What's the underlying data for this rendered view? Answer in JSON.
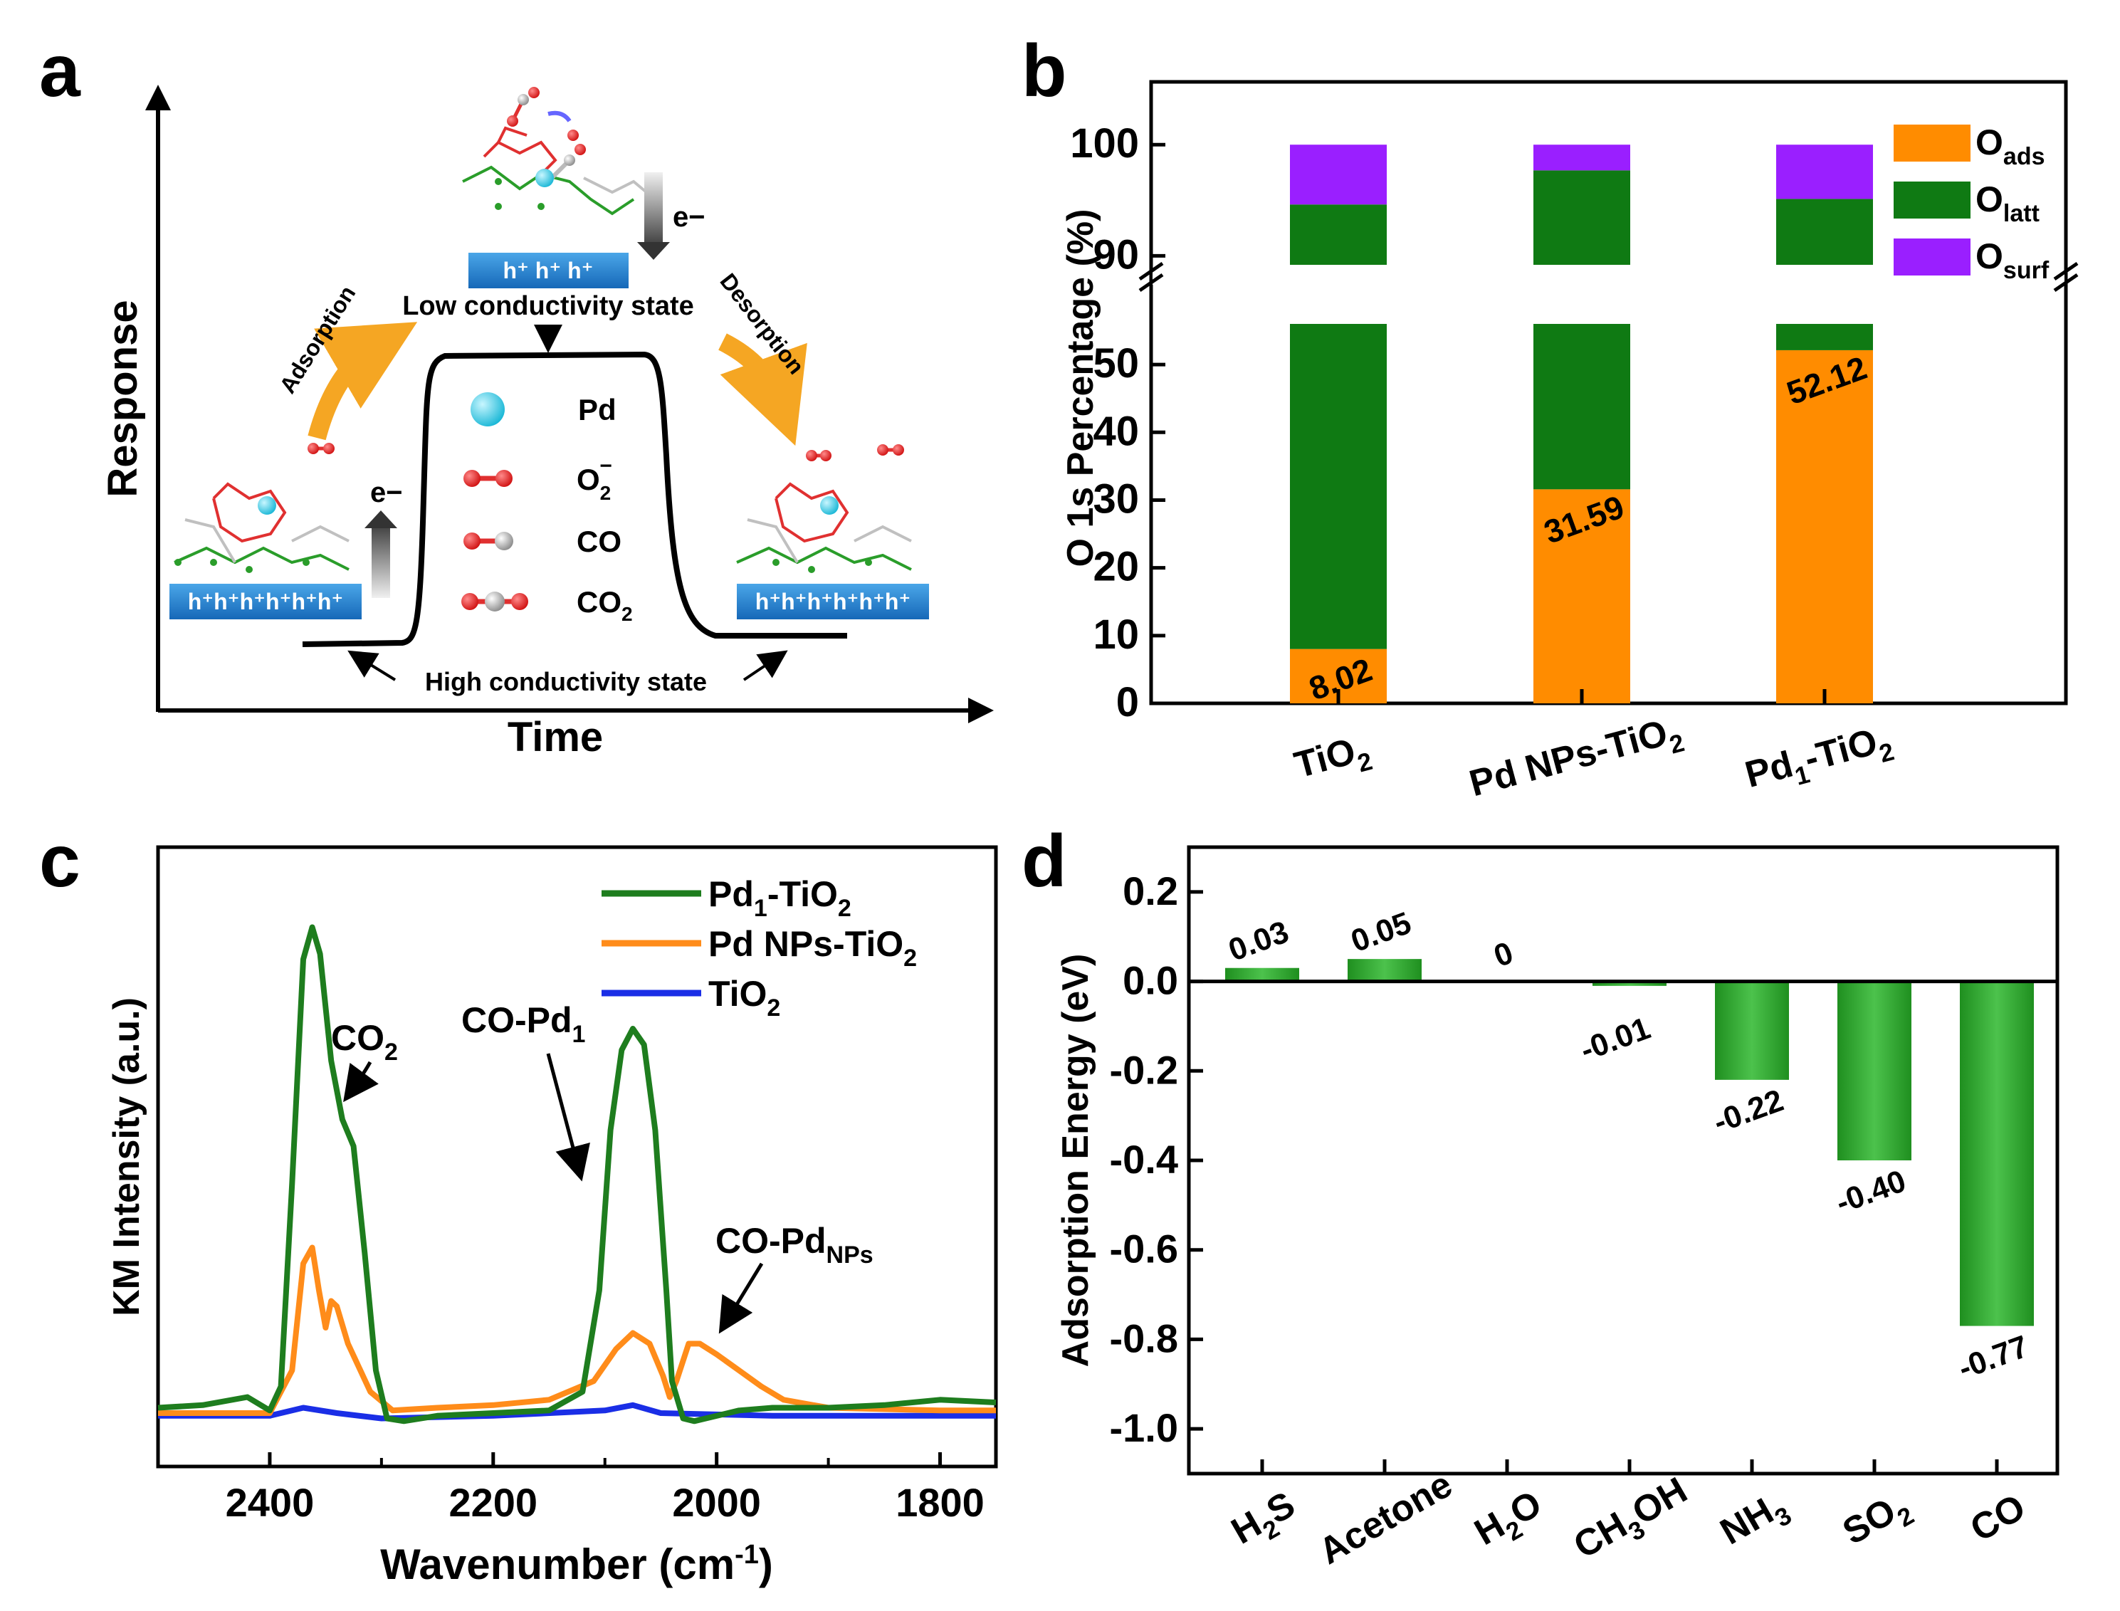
{
  "panels": {
    "a": {
      "label": "a",
      "xlabel": "Time",
      "ylabel": "Response",
      "low_state": "Low conductivity state",
      "high_state": "High conductivity state",
      "adsorption": "Adsorption",
      "desorption": "Desorption",
      "electron_up": "e−",
      "electron_down": "e−",
      "holes_top": "h⁺ h⁺ h⁺",
      "holes_left": "h⁺h⁺h⁺h⁺h⁺h⁺",
      "holes_right": "h⁺h⁺h⁺h⁺h⁺h⁺",
      "legend": [
        {
          "label": "Pd",
          "icon": "pd-atom-icon"
        },
        {
          "label": "O",
          "sub": "2",
          "sup": "−",
          "icon": "o2-molecule-icon"
        },
        {
          "label": "CO",
          "icon": "co-molecule-icon"
        },
        {
          "label": "CO",
          "sub": "2",
          "icon": "co2-molecule-icon"
        }
      ],
      "colors": {
        "box": "#1f7fd1",
        "arrow": "#f5a623",
        "pd": "#33c8e0",
        "o": "#e02020",
        "c": "#9a9a9a"
      }
    },
    "b": {
      "label": "b",
      "ylabel": "O 1s Percentage (%)"
    },
    "c": {
      "label": "c",
      "ylabel": "KM Intensity (a.u.)",
      "annotations": {
        "co2": {
          "main": "CO",
          "sub": "2"
        },
        "co_pd1": {
          "main": "CO-Pd",
          "sub": "1"
        },
        "co_pdnps": {
          "main": "CO-Pd",
          "sub": "NPs"
        }
      }
    },
    "d": {
      "label": "d",
      "ylabel": "Adsorption Energy (eV)"
    }
  },
  "chart_data": [
    {
      "id": "b",
      "type": "bar",
      "stacked": true,
      "broken_axis": {
        "lower": [
          0,
          56
        ],
        "upper": [
          89,
          102
        ]
      },
      "categories": [
        {
          "main": "TiO",
          "sub": "2",
          "tail": ""
        },
        {
          "main": "Pd NPs-TiO",
          "sub": "2",
          "tail": ""
        },
        {
          "main": "Pd",
          "sub": "1",
          "tail": "-TiO",
          "sub2": "2"
        }
      ],
      "series": [
        {
          "name": "O_ads",
          "label": "O",
          "sub": "ads",
          "color": "#ff8c00",
          "values": [
            8.02,
            31.59,
            52.12
          ]
        },
        {
          "name": "O_latt",
          "label": "O",
          "sub": "latt",
          "color": "#0f7a13",
          "values": [
            86.6,
            66.1,
            43.0
          ]
        },
        {
          "name": "O_surf",
          "label": "O",
          "sub": "surf",
          "color": "#9a1fff",
          "values": [
            5.38,
            2.31,
            4.88
          ]
        }
      ],
      "value_labels": [
        "8.02",
        "31.59",
        "52.12"
      ],
      "yticks_lower": [
        0,
        10,
        20,
        30,
        40,
        50
      ],
      "yticks_upper": [
        90,
        100
      ],
      "ytick_labels_lower": [
        "0",
        "10",
        "20",
        "30",
        "40",
        "50"
      ],
      "ytick_labels_upper": [
        "90",
        "100"
      ]
    },
    {
      "id": "c",
      "type": "line",
      "xlabel": "Wavenumber (cm",
      "xlabel_sup": "-1",
      "xlabel_tail": ")",
      "xlim": [
        2500,
        1750
      ],
      "ylim": [
        0,
        1.0
      ],
      "xticks": [
        2400,
        2200,
        2000,
        1800
      ],
      "xtick_labels": [
        "2400",
        "2200",
        "2000",
        "1800"
      ],
      "series": [
        {
          "name": "Pd1-TiO2",
          "label_main": "Pd",
          "label_sub": "1",
          "label_tail": "-TiO",
          "label_sub2": "2",
          "color": "#1e7d1e",
          "points": [
            [
              2500,
              0.03
            ],
            [
              2460,
              0.035
            ],
            [
              2420,
              0.05
            ],
            [
              2400,
              0.025
            ],
            [
              2390,
              0.07
            ],
            [
              2380,
              0.45
            ],
            [
              2370,
              0.87
            ],
            [
              2362,
              0.93
            ],
            [
              2355,
              0.88
            ],
            [
              2345,
              0.68
            ],
            [
              2335,
              0.57
            ],
            [
              2325,
              0.52
            ],
            [
              2315,
              0.32
            ],
            [
              2305,
              0.1
            ],
            [
              2295,
              0.01
            ],
            [
              2280,
              0.005
            ],
            [
              2250,
              0.015
            ],
            [
              2200,
              0.02
            ],
            [
              2150,
              0.025
            ],
            [
              2120,
              0.06
            ],
            [
              2105,
              0.25
            ],
            [
              2095,
              0.55
            ],
            [
              2085,
              0.7
            ],
            [
              2075,
              0.74
            ],
            [
              2065,
              0.71
            ],
            [
              2055,
              0.55
            ],
            [
              2045,
              0.25
            ],
            [
              2040,
              0.08
            ],
            [
              2030,
              0.01
            ],
            [
              2020,
              0.005
            ],
            [
              1980,
              0.025
            ],
            [
              1950,
              0.03
            ],
            [
              1900,
              0.03
            ],
            [
              1850,
              0.035
            ],
            [
              1800,
              0.045
            ],
            [
              1750,
              0.04
            ]
          ]
        },
        {
          "name": "Pd NPs-TiO2",
          "label_main": "Pd NPs-TiO",
          "label_sub": "2",
          "label_tail": "",
          "label_sub2": "",
          "color": "#ff8c1a",
          "points": [
            [
              2500,
              0.02
            ],
            [
              2440,
              0.02
            ],
            [
              2400,
              0.02
            ],
            [
              2380,
              0.1
            ],
            [
              2370,
              0.3
            ],
            [
              2362,
              0.33
            ],
            [
              2356,
              0.25
            ],
            [
              2350,
              0.18
            ],
            [
              2345,
              0.23
            ],
            [
              2340,
              0.22
            ],
            [
              2330,
              0.15
            ],
            [
              2310,
              0.06
            ],
            [
              2290,
              0.025
            ],
            [
              2250,
              0.03
            ],
            [
              2200,
              0.035
            ],
            [
              2150,
              0.045
            ],
            [
              2110,
              0.08
            ],
            [
              2090,
              0.14
            ],
            [
              2075,
              0.17
            ],
            [
              2060,
              0.15
            ],
            [
              2048,
              0.09
            ],
            [
              2042,
              0.05
            ],
            [
              2036,
              0.08
            ],
            [
              2025,
              0.15
            ],
            [
              2015,
              0.15
            ],
            [
              2000,
              0.13
            ],
            [
              1980,
              0.1
            ],
            [
              1960,
              0.07
            ],
            [
              1940,
              0.045
            ],
            [
              1900,
              0.03
            ],
            [
              1800,
              0.025
            ],
            [
              1750,
              0.025
            ]
          ]
        },
        {
          "name": "TiO2",
          "label_main": "TiO",
          "label_sub": "2",
          "label_tail": "",
          "label_sub2": "",
          "color": "#1a2ee6",
          "points": [
            [
              2500,
              0.015
            ],
            [
              2400,
              0.015
            ],
            [
              2370,
              0.03
            ],
            [
              2340,
              0.02
            ],
            [
              2300,
              0.01
            ],
            [
              2200,
              0.015
            ],
            [
              2100,
              0.025
            ],
            [
              2075,
              0.035
            ],
            [
              2050,
              0.02
            ],
            [
              1950,
              0.015
            ],
            [
              1850,
              0.015
            ],
            [
              1750,
              0.015
            ]
          ]
        }
      ]
    },
    {
      "id": "d",
      "type": "bar",
      "ylim": [
        -1.1,
        0.3
      ],
      "yticks": [
        0.2,
        0.0,
        -0.2,
        -0.4,
        -0.6,
        -0.8,
        -1.0
      ],
      "ytick_labels": [
        "0.2",
        "0.0",
        "-0.2",
        "-0.4",
        "-0.6",
        "-0.8",
        "-1.0"
      ],
      "categories": [
        {
          "main": "H",
          "sub": "2",
          "tail": "S"
        },
        {
          "main": "Acetone",
          "sub": "",
          "tail": ""
        },
        {
          "main": "H",
          "sub": "2",
          "tail": "O"
        },
        {
          "main": "CH",
          "sub": "3",
          "tail": "OH"
        },
        {
          "main": "NH",
          "sub": "3",
          "tail": ""
        },
        {
          "main": "SO",
          "sub": "2",
          "tail": ""
        },
        {
          "main": "CO",
          "sub": "",
          "tail": ""
        }
      ],
      "values": [
        0.03,
        0.05,
        0.0,
        -0.01,
        -0.22,
        -0.4,
        -0.77
      ],
      "value_labels": [
        "0.03",
        "0.05",
        "0",
        "-0.01",
        "-0.22",
        "-0.40",
        "-0.77"
      ],
      "color": "#2ea82e"
    }
  ]
}
